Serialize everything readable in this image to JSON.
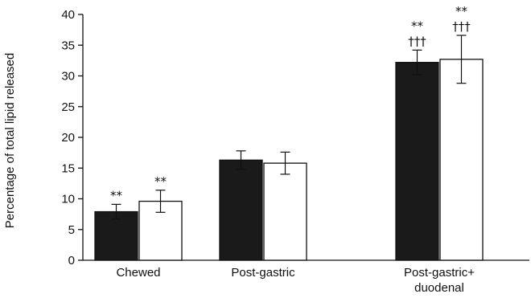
{
  "chart_data": {
    "type": "bar",
    "title": "",
    "xlabel": "",
    "ylabel": "Percentage of total lipid released",
    "ylim": [
      0,
      40
    ],
    "yticks": [
      "0",
      "5",
      "10",
      "15",
      "20",
      "25",
      "30",
      "35",
      "40"
    ],
    "grid": false,
    "legend": "none",
    "categories": [
      [
        "Chewed"
      ],
      [
        "Post-gastric"
      ],
      [
        "Post-gastric+",
        "duodenal"
      ]
    ],
    "series": [
      {
        "color": "#1a1a1a",
        "values": [
          7.9,
          16.3,
          32.2
        ],
        "errors": [
          1.2,
          1.5,
          2.0
        ],
        "annotations": [
          [
            "**"
          ],
          [],
          [
            "**",
            "†††"
          ]
        ]
      },
      {
        "color": "#ffffff",
        "values": [
          9.6,
          15.8,
          32.7
        ],
        "errors": [
          1.8,
          1.8,
          3.9
        ],
        "annotations": [
          [
            "**"
          ],
          [],
          [
            "**",
            "†††"
          ]
        ]
      }
    ]
  }
}
